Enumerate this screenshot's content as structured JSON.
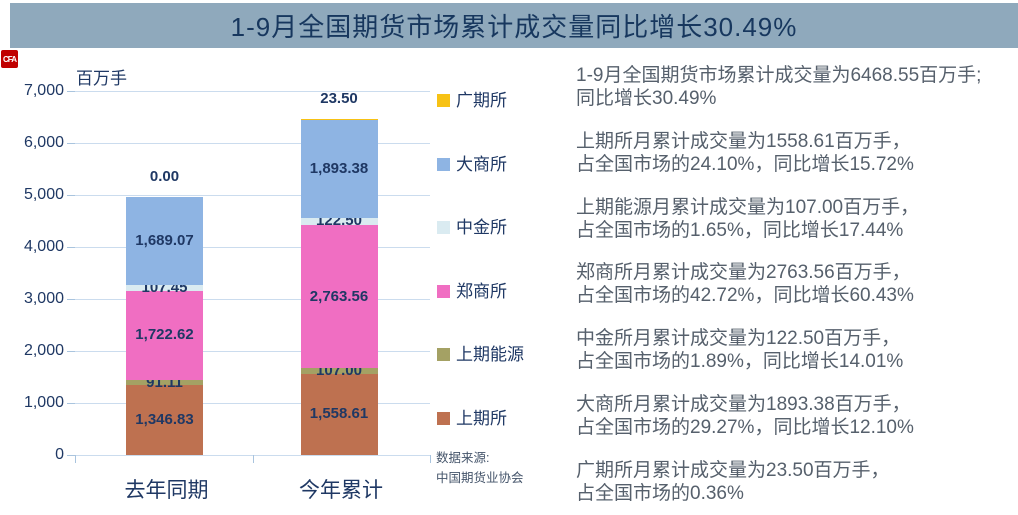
{
  "title": "1-9月全国期货市场累计成交量同比增长30.49%",
  "logo": {
    "text": "CFA"
  },
  "source": {
    "line1": "数据来源:",
    "line2": "中国期货业协会"
  },
  "colors": {
    "title_bar_bg": "#8FA9BC",
    "title_text": "#17375E",
    "navy_text": "#1F3864",
    "annotation_text": "#56606C",
    "source_text": "#44546A",
    "gridline": "#CBDCEE",
    "tick_stub": "#A9C4DE",
    "logo_bg": "#C00000"
  },
  "chart_data": {
    "type": "bar",
    "stacked": true,
    "title": "1-9月全国期货市场累计成交量同比增长30.49%",
    "ylabel": "百万手",
    "xlabel": "",
    "ylim": [
      0,
      7000
    ],
    "ytick_step": 1000,
    "grid": true,
    "legend_position": "right",
    "categories": [
      "去年同期",
      "今年累计"
    ],
    "series": [
      {
        "name": "上期所",
        "color": "#BE7150",
        "values": [
          1346.83,
          1558.61
        ]
      },
      {
        "name": "上期能源",
        "color": "#A4A164",
        "values": [
          91.11,
          107.0
        ]
      },
      {
        "name": "郑商所",
        "color": "#F06EC2",
        "values": [
          1722.62,
          2763.56
        ]
      },
      {
        "name": "中金所",
        "color": "#DAEBF1",
        "values": [
          107.45,
          122.5
        ]
      },
      {
        "name": "大商所",
        "color": "#8EB4E3",
        "values": [
          1689.07,
          1893.38
        ]
      },
      {
        "name": "广期所",
        "color": "#F7C215",
        "values": [
          0.0,
          23.5
        ]
      }
    ],
    "totals": [
      4957.08,
      6468.55
    ],
    "legend_order_top_to_bottom": [
      "广期所",
      "大商所",
      "中金所",
      "郑商所",
      "上期能源",
      "上期所"
    ]
  },
  "annotations": [
    {
      "lines": [
        "1-9月全国期货市场累计成交量为6468.55百万手;",
        "同比增长30.49%"
      ]
    },
    {
      "lines": [
        "上期所月累计成交量为1558.61百万手，",
        "占全国市场的24.10%，同比增长15.72%"
      ]
    },
    {
      "lines": [
        "上期能源月累计成交量为107.00百万手，",
        "占全国市场的1.65%，同比增长17.44%"
      ]
    },
    {
      "lines": [
        "郑商所月累计成交量为2763.56百万手，",
        "占全国市场的42.72%，同比增长60.43%"
      ]
    },
    {
      "lines": [
        "中金所月累计成交量为122.50百万手，",
        "占全国市场的1.89%，同比增长14.01%"
      ]
    },
    {
      "lines": [
        "大商所月累计成交量为1893.38百万手，",
        "占全国市场的29.27%，同比增长12.10%"
      ]
    },
    {
      "lines": [
        "广期所月累计成交量为23.50百万手，",
        "占全国市场的0.36%"
      ]
    }
  ]
}
